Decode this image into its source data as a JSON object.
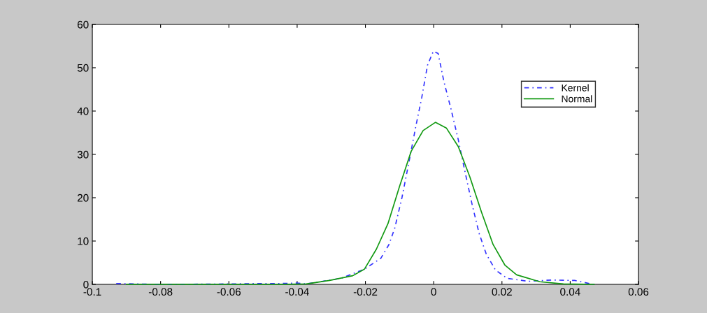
{
  "chart_data": {
    "type": "line",
    "xlim": [
      -0.1,
      0.06
    ],
    "ylim": [
      0,
      60
    ],
    "xticks": [
      -0.1,
      -0.08,
      -0.06,
      -0.04,
      -0.02,
      0,
      0.02,
      0.04,
      0.06
    ],
    "yticks": [
      0,
      10,
      20,
      30,
      40,
      50,
      60
    ],
    "grid": false,
    "legend": "top right",
    "marker": "none",
    "series": [
      {
        "name": "Kernel",
        "color": "#3333ff",
        "line_style": "dashed",
        "x": [
          -0.093,
          -0.08,
          -0.06,
          -0.05,
          -0.045,
          -0.04,
          -0.0373,
          -0.0271,
          -0.0203,
          -0.0155,
          -0.0131,
          -0.0114,
          -0.0093,
          -0.0073,
          -0.0052,
          -0.0035,
          -0.0018,
          -0.0001,
          0.0013,
          0.003,
          0.0051,
          0.0072,
          0.0092,
          0.0113,
          0.0133,
          0.0154,
          0.0181,
          0.0215,
          0.0277,
          0.0345,
          0.0413,
          0.0468
        ],
        "values": [
          0.2,
          0.0,
          0.1,
          0.2,
          0.2,
          0.3,
          0.1,
          1.4,
          3.5,
          6.0,
          9.2,
          13.0,
          20.0,
          28.0,
          36.6,
          43.1,
          50.6,
          53.8,
          53.3,
          46.8,
          40.4,
          33.4,
          25.9,
          18.3,
          11.8,
          7.0,
          3.3,
          1.4,
          0.7,
          1.0,
          0.9,
          0.0
        ]
      },
      {
        "name": "Normal",
        "color": "#119911",
        "line_style": "solid",
        "x": [
          -0.09,
          -0.06,
          -0.045,
          -0.0373,
          -0.0305,
          -0.0237,
          -0.0203,
          -0.0168,
          -0.0134,
          -0.01,
          -0.0066,
          -0.0031,
          0.0005,
          0.0037,
          0.0072,
          0.0106,
          0.014,
          0.0174,
          0.0209,
          0.0243,
          0.0311,
          0.038,
          0.047
        ],
        "values": [
          0.0,
          0.0,
          0.0,
          0.1,
          0.9,
          2.0,
          3.5,
          8.1,
          14.0,
          22.6,
          30.7,
          35.5,
          37.4,
          36.1,
          31.8,
          24.8,
          16.7,
          9.2,
          4.4,
          2.2,
          0.6,
          0.1,
          0.0
        ]
      }
    ]
  }
}
